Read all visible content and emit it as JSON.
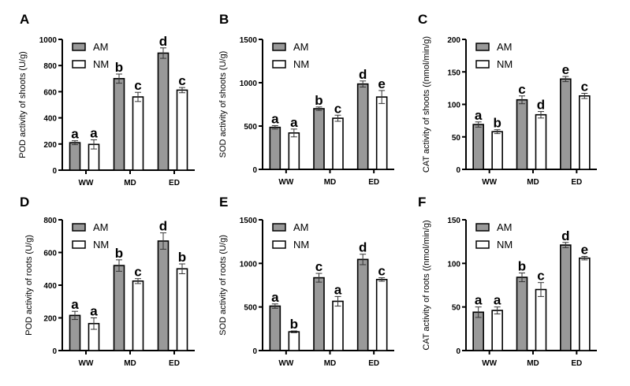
{
  "chart_data": [
    {
      "panel": "A",
      "type": "bar",
      "title": "",
      "xlabel": "",
      "ylabel": "POD activity of shoots (U/g)",
      "categories": [
        "WW",
        "MD",
        "ED"
      ],
      "ylim": [
        0,
        1000
      ],
      "yticks": [
        0,
        200,
        400,
        600,
        800,
        1000
      ],
      "legend": "top-left",
      "series": [
        {
          "name": "AM",
          "values": [
            210,
            700,
            895
          ],
          "errors": [
            15,
            35,
            40
          ],
          "letters": [
            "a",
            "b",
            "d"
          ]
        },
        {
          "name": "NM",
          "values": [
            197,
            560,
            612
          ],
          "errors": [
            35,
            35,
            20
          ],
          "letters": [
            "a",
            "c",
            "c"
          ]
        }
      ]
    },
    {
      "panel": "B",
      "type": "bar",
      "title": "",
      "xlabel": "",
      "ylabel": "SOD activity of shoots (U/g)",
      "categories": [
        "WW",
        "MD",
        "ED"
      ],
      "ylim": [
        0,
        1500
      ],
      "yticks": [
        0,
        500,
        1000,
        1500
      ],
      "legend": "top-left",
      "series": [
        {
          "name": "AM",
          "values": [
            485,
            700,
            985
          ],
          "errors": [
            20,
            20,
            35
          ],
          "letters": [
            "a",
            "b",
            "d"
          ]
        },
        {
          "name": "NM",
          "values": [
            420,
            590,
            835
          ],
          "errors": [
            45,
            35,
            75
          ],
          "letters": [
            "a",
            "c",
            "e"
          ]
        }
      ]
    },
    {
      "panel": "C",
      "type": "bar",
      "title": "",
      "xlabel": "",
      "ylabel": "CAT activity of shoots ((nmol/min/g)",
      "categories": [
        "WW",
        "MD",
        "ED"
      ],
      "ylim": [
        0,
        200
      ],
      "yticks": [
        0,
        50,
        100,
        150,
        200
      ],
      "legend": "top-left",
      "series": [
        {
          "name": "AM",
          "values": [
            69,
            107,
            139
          ],
          "errors": [
            4,
            6,
            4
          ],
          "letters": [
            "a",
            "c",
            "e"
          ]
        },
        {
          "name": "NM",
          "values": [
            58,
            84,
            113
          ],
          "errors": [
            3,
            5,
            4
          ],
          "letters": [
            "b",
            "d",
            "c"
          ]
        }
      ]
    },
    {
      "panel": "D",
      "type": "bar",
      "title": "",
      "xlabel": "",
      "ylabel": "POD activity of roots (U/g)",
      "categories": [
        "WW",
        "MD",
        "ED"
      ],
      "ylim": [
        0,
        800
      ],
      "yticks": [
        0,
        200,
        400,
        600,
        800
      ],
      "legend": "top-left",
      "series": [
        {
          "name": "AM",
          "values": [
            215,
            520,
            670
          ],
          "errors": [
            25,
            35,
            50
          ],
          "letters": [
            "a",
            "b",
            "d"
          ]
        },
        {
          "name": "NM",
          "values": [
            165,
            425,
            500
          ],
          "errors": [
            35,
            15,
            30
          ],
          "letters": [
            "a",
            "c",
            "b"
          ]
        }
      ]
    },
    {
      "panel": "E",
      "type": "bar",
      "title": "",
      "xlabel": "",
      "ylabel": "SOD activity of roots (U/g)",
      "categories": [
        "WW",
        "MD",
        "ED"
      ],
      "ylim": [
        0,
        1500
      ],
      "yticks": [
        0,
        500,
        1000,
        1500
      ],
      "legend": "top-left",
      "series": [
        {
          "name": "AM",
          "values": [
            510,
            835,
            1045
          ],
          "errors": [
            25,
            50,
            60
          ],
          "letters": [
            "a",
            "c",
            "d"
          ]
        },
        {
          "name": "NM",
          "values": [
            215,
            565,
            815
          ],
          "errors": [
            10,
            55,
            20
          ],
          "letters": [
            "b",
            "a",
            "c"
          ]
        }
      ]
    },
    {
      "panel": "F",
      "type": "bar",
      "title": "",
      "xlabel": "",
      "ylabel": "CAT activity of roots ((nmol/min/g)",
      "categories": [
        "WW",
        "MD",
        "ED"
      ],
      "ylim": [
        0,
        150
      ],
      "yticks": [
        0,
        50,
        100,
        150
      ],
      "legend": "top-left",
      "series": [
        {
          "name": "AM",
          "values": [
            44,
            84,
            121
          ],
          "errors": [
            6,
            5,
            3
          ],
          "letters": [
            "a",
            "b",
            "d"
          ]
        },
        {
          "name": "NM",
          "values": [
            46,
            70,
            106
          ],
          "errors": [
            4,
            8,
            2
          ],
          "letters": [
            "a",
            "c",
            "e"
          ]
        }
      ]
    }
  ],
  "colors": {
    "AM": "#999999",
    "NM": "#ffffff",
    "stroke": "#000000"
  }
}
